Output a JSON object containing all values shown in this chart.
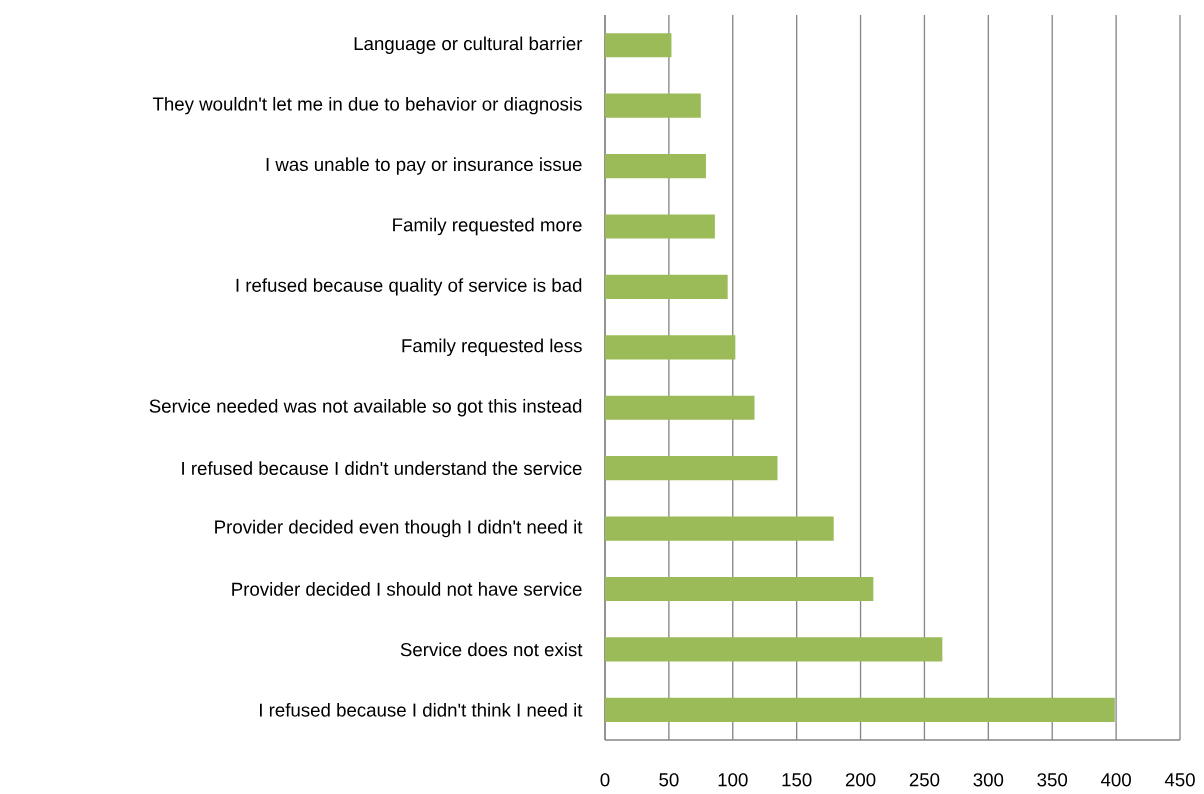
{
  "chart_data": {
    "type": "bar",
    "orientation": "horizontal",
    "categories": [
      "Language or cultural barrier",
      "They wouldn't let me in due to behavior or diagnosis",
      "I was unable to pay or insurance issue",
      "Family requested more",
      "I refused because quality of service is bad",
      "Family requested less",
      "Service needed was not available so got this instead",
      "I refused because I didn't understand the service",
      "Provider decided even though I didn't need it",
      "Provider decided I should not have service",
      "Service does not exist",
      "I refused because I didn't think I need it"
    ],
    "values": [
      52,
      75,
      79,
      86,
      96,
      102,
      117,
      135,
      179,
      210,
      264,
      399
    ],
    "color": "#9bbb59",
    "xlim": [
      0,
      450
    ],
    "xticks": [
      0,
      50,
      100,
      150,
      200,
      250,
      300,
      350,
      400,
      450
    ],
    "grid": "x"
  }
}
